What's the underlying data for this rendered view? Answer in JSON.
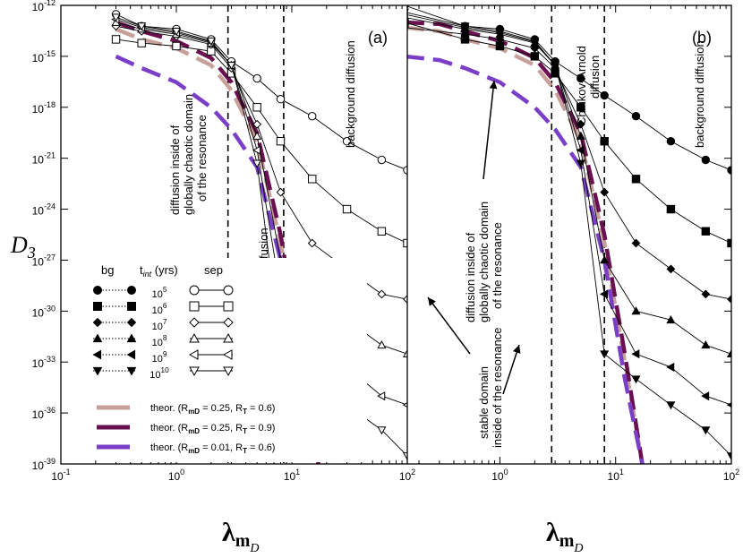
{
  "chart_data": [
    {
      "panel": "(a)",
      "type": "line",
      "title": "",
      "xlabel": "λ_mD",
      "ylabel": "D3",
      "xscale": "log",
      "yscale": "log",
      "xlim": [
        0.1,
        100
      ],
      "ylim": [
        1e-39,
        1e-12
      ],
      "grid": false,
      "annotations": [
        {
          "text": "diffusion inside of",
          "x": 0.5,
          "y": 1e-18
        },
        {
          "text": "globally chaotic domain",
          "x": 0.6,
          "y": 1e-18
        },
        {
          "text": "of the resonance",
          "x": 0.7,
          "y": 1e-18
        },
        {
          "text": "Chirikov-Arnold diffusion",
          "x": 6.0,
          "y": 1e-31
        },
        {
          "text": "background diffusion",
          "x": 20,
          "y": 1e-17
        }
      ],
      "vlines": [
        2.8,
        8.5
      ],
      "series": [
        {
          "name": "sep t=10^5",
          "marker": "circle-open",
          "x": [
            0.3,
            0.5,
            1,
            2,
            3,
            5,
            8,
            15,
            30,
            60,
            100
          ],
          "y": [
            3e-13,
            6e-14,
            4e-14,
            1e-14,
            5e-16,
            5e-17,
            3e-18,
            3e-19,
            1e-20,
            8e-22,
            2e-22
          ]
        },
        {
          "name": "sep t=10^6",
          "marker": "square-open",
          "x": [
            0.3,
            0.5,
            1,
            2,
            3,
            5,
            8,
            15,
            30,
            60,
            100
          ],
          "y": [
            1e-14,
            6e-15,
            4e-15,
            2e-15,
            1e-16,
            1e-18,
            1e-20,
            6e-23,
            1e-24,
            5e-26,
            1e-26
          ]
        },
        {
          "name": "sep t=10^7",
          "marker": "diamond-open",
          "x": [
            0.3,
            0.5,
            1,
            2,
            3,
            5,
            8,
            15,
            30,
            60,
            100
          ],
          "y": [
            6e-14,
            3e-14,
            1.5e-14,
            5e-15,
            2e-16,
            1e-19,
            1e-23,
            1e-26,
            3e-28,
            1e-29,
            5e-30
          ]
        },
        {
          "name": "sep t=10^8",
          "marker": "triangle-up-open",
          "x": [
            0.3,
            0.5,
            1,
            2,
            3,
            5,
            8,
            15,
            30,
            60,
            100
          ],
          "y": [
            1e-13,
            4e-14,
            2e-14,
            6e-15,
            3e-16,
            2e-20,
            1e-27,
            1e-30,
            3e-31,
            1e-32,
            3e-33
          ]
        },
        {
          "name": "sep t=10^9",
          "marker": "triangle-left-open",
          "x": [
            0.3,
            0.5,
            1,
            2,
            3,
            5,
            8,
            15,
            30,
            60,
            100
          ],
          "y": [
            1.5e-13,
            5e-14,
            2.5e-14,
            7e-15,
            3e-16,
            3e-21,
            1e-29,
            3e-33,
            5e-34,
            1e-35,
            3e-36
          ]
        },
        {
          "name": "sep t=10^10",
          "marker": "triangle-down-open",
          "x": [
            0.3,
            0.5,
            1,
            2,
            3,
            5,
            8,
            15,
            30,
            60,
            100
          ],
          "y": [
            2e-13,
            6e-14,
            3e-14,
            8e-15,
            3e-16,
            5e-22,
            5e-33,
            1e-34,
            3e-36,
            1e-37,
            3e-39
          ]
        },
        {
          "name": "bg t=10^10",
          "marker": "triangle-down-filled",
          "x": [
            2.8,
            3,
            4,
            5,
            6,
            8
          ],
          "y": [
            1e-31,
            8e-33,
            1e-33,
            5e-34,
            2e-34,
            1e-34
          ]
        },
        {
          "name": "theor. (R=0.25, RT=0.6)",
          "color": "#c8a09a",
          "x": [
            0.3,
            0.5,
            1,
            2,
            3,
            5,
            8,
            12,
            17
          ],
          "y": [
            4e-14,
            1e-14,
            3e-15,
            3e-16,
            1e-17,
            1e-20,
            1e-26,
            1e-33,
            1e-39
          ]
        },
        {
          "name": "theor. (R=0.25, RT=0.9)",
          "color": "#6a1050",
          "x": [
            0.3,
            0.5,
            1,
            2,
            3,
            5,
            8,
            12,
            17
          ],
          "y": [
            1e-13,
            3e-14,
            8e-15,
            8e-16,
            3e-17,
            3e-20,
            3e-26,
            3e-33,
            1e-39
          ]
        },
        {
          "name": "theor. (R=0.01, RT=0.6)",
          "color": "#7b3fc7",
          "x": [
            0.3,
            0.5,
            1,
            2,
            3,
            5,
            8,
            12,
            17
          ],
          "y": [
            1e-15,
            2e-16,
            3e-17,
            1e-18,
            5e-20,
            3e-22,
            1e-27,
            1e-34,
            1e-39
          ]
        }
      ]
    },
    {
      "panel": "(b)",
      "type": "line",
      "title": "",
      "xlabel": "λ_mD",
      "ylabel": "",
      "xscale": "log",
      "yscale": "log",
      "xlim": [
        0.1,
        100
      ],
      "ylim": [
        1e-39,
        1e-12
      ],
      "grid": false,
      "annotations": [
        {
          "text": "diffusion inside of",
          "x": 0.5,
          "y": 1e-27
        },
        {
          "text": "globally chaotic domain",
          "x": 0.6,
          "y": 1e-27
        },
        {
          "text": "of the resonance",
          "x": 0.7,
          "y": 1e-27
        },
        {
          "text": "Chirikov-Arnold",
          "x": 4.0,
          "y": 1e-16
        },
        {
          "text": "diffusion",
          "x": 5.0,
          "y": 1e-16
        },
        {
          "text": "background diffusion",
          "x": 20,
          "y": 1e-17
        },
        {
          "text": "stable domain",
          "x": 0.2,
          "y": 1e-34
        },
        {
          "text": "inside of the resonance",
          "x": 0.3,
          "y": 1e-34
        }
      ],
      "vlines": [
        2.8,
        8.0
      ],
      "series": [
        {
          "name": "bg/sep t=10^5",
          "marker": "circle",
          "x": [
            0.15,
            0.5,
            1,
            2,
            3,
            5,
            8,
            15,
            30,
            60,
            100
          ],
          "y": [
            1e-12,
            6e-14,
            4e-14,
            1e-14,
            5e-16,
            5e-17,
            5e-18,
            3e-19,
            1e-20,
            8e-22,
            2e-22
          ]
        },
        {
          "name": "bg/sep t=10^6",
          "marker": "square",
          "x": [
            0.15,
            0.5,
            1,
            2,
            3,
            5,
            8,
            15,
            30,
            60,
            100
          ],
          "y": [
            1e-13,
            1e-14,
            4e-15,
            1e-15,
            1e-16,
            1e-18,
            1e-20,
            6e-23,
            1e-24,
            5e-26,
            1e-26
          ]
        },
        {
          "name": "bg/sep t=10^7",
          "marker": "diamond",
          "x": [
            0.15,
            0.5,
            1,
            2,
            3,
            5,
            8,
            15,
            30,
            60,
            100
          ],
          "y": [
            5e-14,
            2e-14,
            1e-14,
            3e-15,
            2e-16,
            1e-19,
            1e-23,
            1e-26,
            3e-28,
            1e-29,
            5e-30
          ]
        },
        {
          "name": "bg/sep t=10^8",
          "marker": "triangle-up",
          "x": [
            0.15,
            0.5,
            1,
            2,
            3,
            5,
            8,
            15,
            30,
            60,
            100
          ],
          "y": [
            2e-13,
            4e-14,
            2e-14,
            6e-15,
            3e-16,
            2e-20,
            1e-27,
            1e-30,
            3e-31,
            1e-32,
            3e-33
          ]
        },
        {
          "name": "bg/sep t=10^9",
          "marker": "triangle-left",
          "x": [
            0.15,
            0.5,
            1,
            2,
            3,
            5,
            8,
            15,
            30,
            60,
            100
          ],
          "y": [
            3e-13,
            5e-14,
            2.5e-14,
            7e-15,
            3e-16,
            3e-21,
            1e-29,
            3e-33,
            5e-34,
            1e-35,
            3e-36
          ]
        },
        {
          "name": "bg/sep t=10^10",
          "marker": "triangle-down",
          "x": [
            0.15,
            0.5,
            1,
            2,
            3,
            5,
            8,
            15,
            30,
            60,
            100
          ],
          "y": [
            4e-13,
            6e-14,
            3e-14,
            8e-15,
            3e-16,
            5e-22,
            3e-33,
            1e-34,
            3e-36,
            1e-37,
            3e-39
          ]
        },
        {
          "name": "theor. (R=0.25, RT=0.6)",
          "color": "#c8a09a",
          "x": [
            0.15,
            0.3,
            0.5,
            1,
            2,
            3,
            5,
            8,
            12,
            17
          ],
          "y": [
            5e-14,
            3e-14,
            1e-14,
            3e-15,
            3e-16,
            1e-17,
            1e-20,
            1e-26,
            1e-33,
            1e-39
          ]
        },
        {
          "name": "theor. (R=0.25, RT=0.9)",
          "color": "#6a1050",
          "x": [
            0.15,
            0.3,
            0.5,
            1,
            2,
            3,
            5,
            8,
            12,
            17
          ],
          "y": [
            1e-13,
            8e-14,
            3e-14,
            8e-15,
            8e-16,
            3e-17,
            3e-20,
            3e-26,
            3e-33,
            1e-39
          ]
        },
        {
          "name": "theor. (R=0.01, RT=0.6)",
          "color": "#7b3fc7",
          "x": [
            0.15,
            0.3,
            0.5,
            1,
            2,
            3,
            5,
            8,
            12,
            17
          ],
          "y": [
            1e-15,
            6e-16,
            2e-16,
            3e-17,
            1e-18,
            5e-20,
            3e-22,
            1e-27,
            1e-34,
            1e-39
          ]
        }
      ]
    }
  ],
  "legend": {
    "bg_label": "bg",
    "t_label": "t",
    "t_sub": "int",
    "t_units": "(yrs)",
    "sep_label": "sep",
    "times": [
      "10^5",
      "10^6",
      "10^7",
      "10^8",
      "10^9",
      "10^10"
    ],
    "theor": [
      {
        "label": "theor. (R",
        "sub": "mD",
        "mid": " = 0.25, R",
        "sub2": "T",
        "end": " = 0.6)",
        "color": "#c8a09a"
      },
      {
        "label": "theor. (R",
        "sub": "mD",
        "mid": " = 0.25, R",
        "sub2": "T",
        "end": " = 0.9)",
        "color": "#6a1050"
      },
      {
        "label": "theor. (R",
        "sub": "mD",
        "mid": " = 0.01, R",
        "sub2": "T",
        "end": " = 0.6)",
        "color": "#7b3fc7"
      }
    ]
  },
  "axes": {
    "y_ticks": [
      "10^-12",
      "10^-15",
      "10^-18",
      "10^-21",
      "10^-24",
      "10^-27",
      "10^-30",
      "10^-33",
      "10^-36",
      "10^-39"
    ],
    "x_ticks_a": [
      "10^-1",
      "10^0",
      "10^1",
      "10^2"
    ],
    "x_ticks_b": [
      "10^0",
      "10^1",
      "10^2"
    ],
    "ylabel": "D",
    "ylabel_sub": "3",
    "xlabel": "λ",
    "xlabel_sub": "m",
    "xlabel_subsub": "D"
  }
}
